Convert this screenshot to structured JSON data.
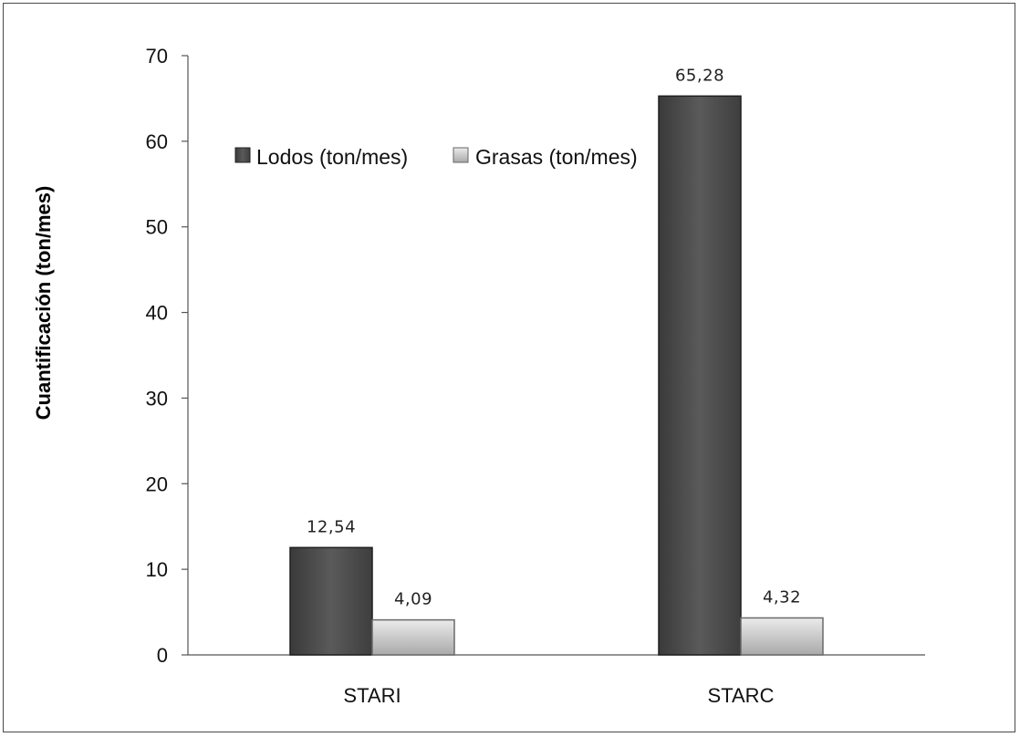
{
  "chart_data": {
    "type": "bar",
    "title": "",
    "xlabel": "",
    "ylabel": "Cuantificación (ton/mes)",
    "categories": [
      "STARI",
      "STARC"
    ],
    "series": [
      {
        "name": "Lodos (ton/mes)",
        "values": [
          12.54,
          65.28
        ],
        "labels": [
          "12,54",
          "65,28"
        ],
        "color": "#4d4d4d"
      },
      {
        "name": "Grasas (ton/mes)",
        "values": [
          4.09,
          4.32
        ],
        "labels": [
          "4,09",
          "4,32"
        ],
        "color": "#c4c4c4"
      }
    ],
    "ylim": [
      0,
      70
    ],
    "yticks": [
      "0",
      "10",
      "20",
      "30",
      "40",
      "50",
      "60",
      "70"
    ],
    "grid": false,
    "legend_position": "top-center"
  }
}
